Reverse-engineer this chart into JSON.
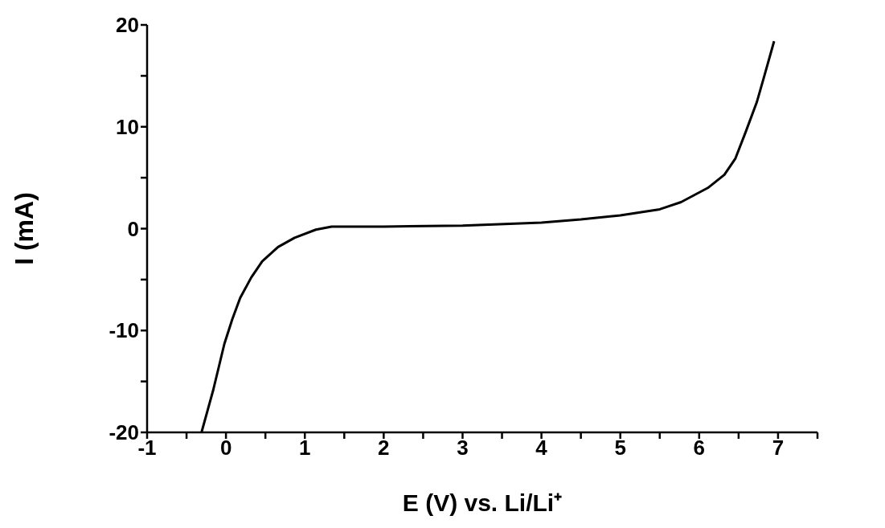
{
  "chart_data": {
    "type": "line",
    "xlabel": "E (V) vs. Li/Li⁺",
    "ylabel": "I (mA)",
    "x": [
      -0.31,
      -0.16,
      -0.02,
      0.08,
      0.18,
      0.32,
      0.46,
      0.66,
      0.87,
      1.14,
      1.34,
      2,
      3,
      4,
      4.5,
      5,
      5.5,
      5.77,
      6.11,
      6.32,
      6.46,
      6.59,
      6.73,
      6.83,
      6.95
    ],
    "series": [
      {
        "color": "#000000",
        "values": [
          -20,
          -15.8,
          -11.3,
          -8.9,
          -6.8,
          -4.8,
          -3.2,
          -1.8,
          -0.9,
          -0.1,
          0.2,
          0.2,
          0.3,
          0.6,
          0.9,
          1.3,
          1.9,
          2.6,
          4.0,
          5.3,
          6.9,
          9.5,
          12.4,
          15.1,
          18.4
        ]
      }
    ],
    "xlim": [
      -1,
      7.5
    ],
    "ylim": [
      -20,
      20
    ],
    "xticks": [
      -1,
      {
        "value": -0.5,
        "label": null
      },
      0,
      {
        "value": 0.5,
        "label": null
      },
      1,
      {
        "value": 1.5,
        "label": null
      },
      2,
      {
        "value": 2.5,
        "label": null
      },
      3,
      {
        "value": 3.5,
        "label": null
      },
      4,
      {
        "value": 4.5,
        "label": null
      },
      5,
      {
        "value": 5.5,
        "label": null
      },
      6,
      {
        "value": 6.5,
        "label": null
      },
      7,
      {
        "value": 7.5,
        "label": null
      }
    ],
    "yticks": [
      -20,
      {
        "value": -15,
        "label": null
      },
      -10,
      {
        "value": -5,
        "label": null
      },
      0,
      {
        "value": 5,
        "label": null
      },
      10,
      {
        "value": 15,
        "label": null
      },
      20
    ],
    "grid": false,
    "legend": false,
    "marker": "none",
    "line_style": "solid"
  }
}
